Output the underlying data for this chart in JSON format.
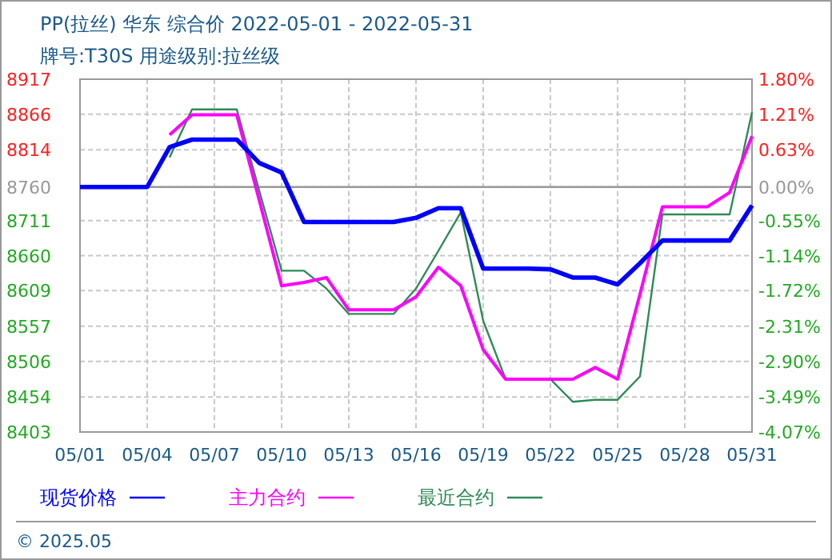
{
  "chart_data": {
    "type": "line",
    "title": "PP(拉丝) 华东 综合价 2022-05-01 - 2022-05-31",
    "subtitle": "牌号:T30S 用途级别:拉丝级",
    "annotations": [
      "© 2025.05"
    ],
    "xlim": [
      "2022-05-01",
      "2022-05-31"
    ],
    "xticks": [
      {
        "value": "2022-05-01",
        "label": "05/01"
      },
      {
        "value": "2022-05-04",
        "label": "05/04"
      },
      {
        "value": "2022-05-07",
        "label": "05/07"
      },
      {
        "value": "2022-05-10",
        "label": "05/10"
      },
      {
        "value": "2022-05-13",
        "label": "05/13"
      },
      {
        "value": "2022-05-16",
        "label": "05/16"
      },
      {
        "value": "2022-05-19",
        "label": "05/19"
      },
      {
        "value": "2022-05-22",
        "label": "05/22"
      },
      {
        "value": "2022-05-25",
        "label": "05/25"
      },
      {
        "value": "2022-05-28",
        "label": "05/28"
      },
      {
        "value": "2022-05-31",
        "label": "05/31"
      }
    ],
    "ylim": [
      8403,
      8917
    ],
    "yticks": [
      8403,
      8454,
      8506,
      8557,
      8609,
      8660,
      8711,
      8760,
      8814,
      8866,
      8917
    ],
    "y2lim": [
      -4.07,
      1.8
    ],
    "y2ticks": [
      {
        "value": -4.07,
        "label": "-4.07%"
      },
      {
        "value": -3.49,
        "label": "-3.49%"
      },
      {
        "value": -2.9,
        "label": "-2.90%"
      },
      {
        "value": -2.31,
        "label": "-2.31%"
      },
      {
        "value": -1.72,
        "label": "-1.72%"
      },
      {
        "value": -1.14,
        "label": "-1.14%"
      },
      {
        "value": -0.55,
        "label": "-0.55%"
      },
      {
        "value": 0,
        "label": "0.00%"
      },
      {
        "value": 0.63,
        "label": "0.63%"
      },
      {
        "value": 1.21,
        "label": "1.21%"
      },
      {
        "value": 1.8,
        "label": "1.80%"
      }
    ],
    "ref_lines": [
      {
        "axis": "y",
        "value": 8760,
        "color": "#999999"
      }
    ],
    "grid": true,
    "legend": "bottom",
    "marker": "none",
    "line_style": "solid",
    "x": [
      "2022-05-01",
      "2022-05-02",
      "2022-05-03",
      "2022-05-04",
      "2022-05-05",
      "2022-05-06",
      "2022-05-07",
      "2022-05-08",
      "2022-05-09",
      "2022-05-10",
      "2022-05-11",
      "2022-05-12",
      "2022-05-13",
      "2022-05-14",
      "2022-05-15",
      "2022-05-16",
      "2022-05-17",
      "2022-05-18",
      "2022-05-19",
      "2022-05-20",
      "2022-05-21",
      "2022-05-22",
      "2022-05-23",
      "2022-05-24",
      "2022-05-25",
      "2022-05-26",
      "2022-05-27",
      "2022-05-28",
      "2022-05-29",
      "2022-05-30",
      "2022-05-31"
    ],
    "series": [
      {
        "name": "现货价格",
        "color": "#0000ff",
        "values": [
          8760,
          8760,
          8760,
          8760,
          8818,
          8829,
          8829,
          8829,
          8795,
          8781,
          8709,
          8709,
          8709,
          8709,
          8709,
          8715,
          8729,
          8729,
          8641,
          8641,
          8641,
          8640,
          8628,
          8628,
          8618,
          8649,
          8682,
          8682,
          8682,
          8682,
          8733
        ]
      },
      {
        "name": "主力合约",
        "color": "#ff00ff",
        "values": [
          null,
          null,
          null,
          null,
          8836,
          8865,
          8865,
          8865,
          8741,
          8616,
          8621,
          8628,
          8581,
          8581,
          8581,
          8600,
          8643,
          8616,
          8523,
          8480,
          8480,
          8480,
          8480,
          8497,
          8480,
          8604,
          8731,
          8731,
          8731,
          8752,
          8834
        ]
      },
      {
        "name": "最近合约",
        "color": "#2e8b57",
        "values": [
          null,
          null,
          null,
          null,
          8803,
          8873,
          8873,
          8873,
          8755,
          8638,
          8638,
          8612,
          8575,
          8575,
          8575,
          8612,
          8667,
          8723,
          8565,
          8480,
          8480,
          8480,
          8447,
          8450,
          8450,
          8484,
          8720,
          8720,
          8720,
          8720,
          8869
        ]
      }
    ]
  }
}
